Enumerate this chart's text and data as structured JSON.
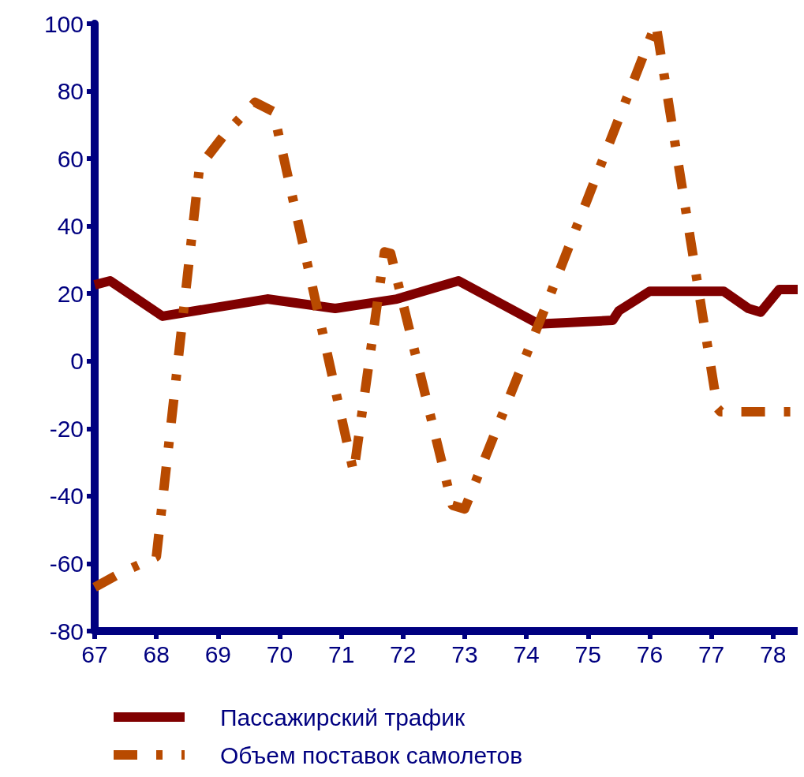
{
  "chart_data": {
    "type": "line",
    "xlim": [
      67,
      78.4
    ],
    "xticks": [
      67,
      68,
      69,
      70,
      71,
      72,
      73,
      74,
      75,
      76,
      77,
      78
    ],
    "ylim": [
      -80,
      100
    ],
    "yticks": [
      -80,
      -60,
      -40,
      -20,
      0,
      20,
      40,
      60,
      80,
      100
    ],
    "grid": false,
    "legend": "bottom",
    "marker": "none",
    "series": [
      {
        "name": "Пассажирский трафик",
        "color": "#800000",
        "line_style": "solid",
        "x": [
          67,
          67.25,
          68.1,
          69.8,
          70.9,
          71.9,
          72.9,
          74.2,
          75.4,
          75.5,
          76,
          77.2,
          77.6,
          77.8,
          78.1,
          78.4
        ],
        "values": [
          22.6,
          23.8,
          13.3,
          18.4,
          15.6,
          18.4,
          23.8,
          11,
          12.1,
          14.9,
          20.7,
          20.7,
          15.6,
          14.5,
          21.2,
          21.2
        ]
      },
      {
        "name": "Объем поставок самолетов",
        "color": "#b84a00",
        "line_style": "dashdot",
        "x": [
          67,
          67.4,
          68,
          68.7,
          69.1,
          69.6,
          69.9,
          71.2,
          71.7,
          71.8,
          72.8,
          73,
          74.3,
          76.1,
          77.1,
          77.15,
          78.4
        ],
        "values": [
          -67,
          -63,
          -58,
          57.6,
          67,
          76.7,
          73.9,
          -33,
          32.4,
          31.9,
          -42.7,
          -43.8,
          15.6,
          100,
          -14,
          -15,
          -15
        ]
      }
    ]
  }
}
